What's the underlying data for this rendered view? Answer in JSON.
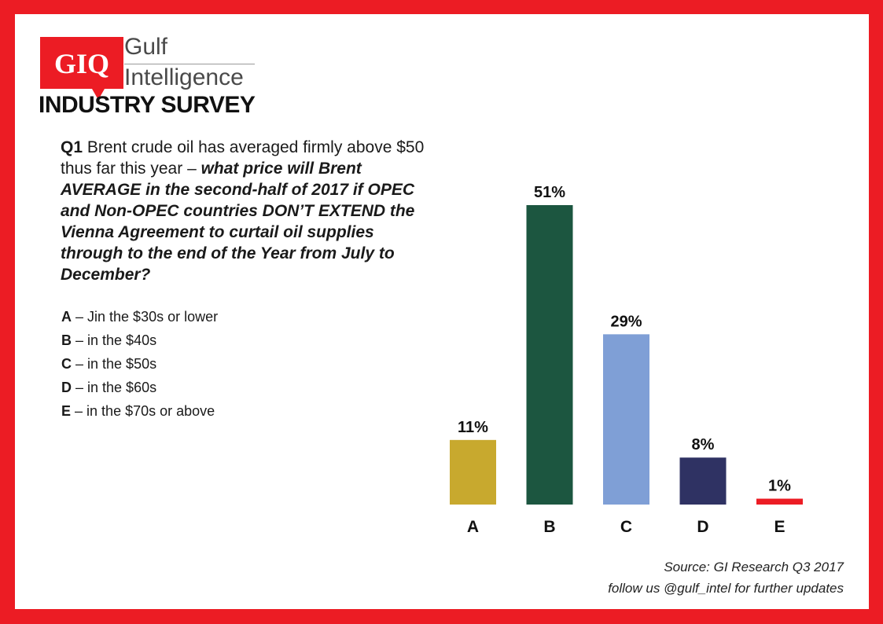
{
  "header": {
    "logo_text": "GIQ",
    "logo_name_line1": "Gulf",
    "logo_name_line2": "Intelligence",
    "survey_title": "INDUSTRY SURVEY"
  },
  "question": {
    "number": "Q1",
    "lead": "Brent crude oil has averaged firmly above $50 thus far this year – ",
    "emphasis": "what price will Brent AVERAGE in the second-half of 2017 if OPEC and Non-OPEC countries DON’T EXTEND the Vienna Agreement to curtail oil supplies through to the end of the Year from July to December?"
  },
  "options": [
    {
      "letter": "A",
      "text": "– Jin the $30s or lower"
    },
    {
      "letter": "B",
      "text": "– in the $40s"
    },
    {
      "letter": "C",
      "text": "– in the $50s"
    },
    {
      "letter": "D",
      "text": "– in the $60s"
    },
    {
      "letter": "E",
      "text": "– in the $70s or above"
    }
  ],
  "chart_data": {
    "type": "bar",
    "categories": [
      "A",
      "B",
      "C",
      "D",
      "E"
    ],
    "values": [
      11,
      51,
      29,
      8,
      1
    ],
    "value_labels": [
      "11%",
      "51%",
      "29%",
      "8%",
      "1%"
    ],
    "colors": [
      "#c8a92e",
      "#1c5640",
      "#7f9fd6",
      "#2f3263",
      "#ec1c24"
    ],
    "title": "",
    "xlabel": "",
    "ylabel": "",
    "ylim": [
      0,
      51
    ],
    "grid": false,
    "legend": "none"
  },
  "footer": {
    "source": "Source: GI Research Q3 2017",
    "follow": "follow us @gulf_intel for further updates"
  },
  "colors": {
    "frame": "#ec1c24",
    "logo_red": "#ec1c24"
  }
}
